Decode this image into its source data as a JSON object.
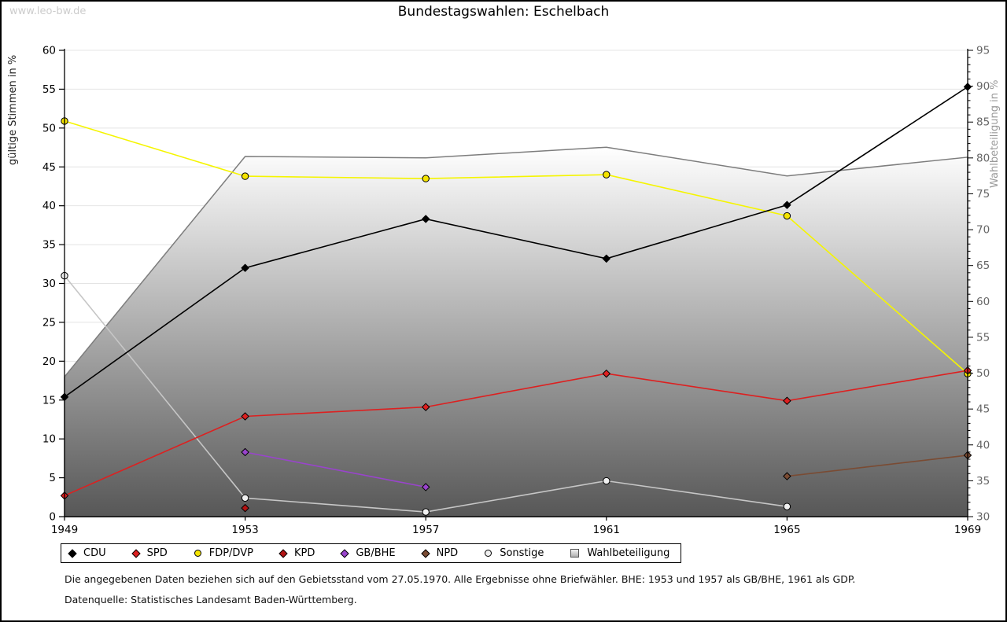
{
  "watermark": "www.leo-bw.de",
  "title": "Bundestagswahlen: Eschelbach",
  "footnotes": {
    "line1": "Die angegebenen Daten beziehen sich auf den Gebietsstand vom 27.05.1970. Alle Ergebnisse ohne Briefwähler. BHE: 1953 und 1957 als GB/BHE, 1961 als GDP.",
    "line2": "Datenquelle: Statistisches Landesamt Baden-Württemberg."
  },
  "chart_data": {
    "type": "line",
    "title": "Bundestagswahlen: Eschelbach",
    "x": [
      1949,
      1953,
      1957,
      1961,
      1965,
      1969
    ],
    "ylabel_left": "gültige Stimmen in %",
    "ylabel_right": "Wahlbeteiligung in %",
    "ylim_left": [
      0,
      60
    ],
    "ylim_right": [
      30,
      95
    ],
    "left_tick_step": 5,
    "right_tick_step": 5,
    "right_minor_tick_step": 1,
    "grid": true,
    "legend_position": "bottom",
    "series": [
      {
        "name": "Wahlbeteiligung",
        "kind": "area",
        "axis": "right",
        "color": "#7d7d7d",
        "fill_top": "#ffffff",
        "fill_bottom": "#575757",
        "marker": "square",
        "values": [
          49.5,
          80.2,
          80.0,
          81.5,
          77.5,
          80.1
        ]
      },
      {
        "name": "Sonstige",
        "kind": "line",
        "axis": "left",
        "color": "#c6c6c6",
        "marker": "circle",
        "marker_fill": "#f0f0f0",
        "values": [
          31.0,
          2.4,
          0.6,
          4.6,
          1.3,
          null
        ]
      },
      {
        "name": "GB/BHE",
        "kind": "line",
        "axis": "left",
        "color": "#9944cc",
        "marker": "diamond",
        "marker_fill": "#9944cc",
        "values": [
          null,
          8.3,
          3.8,
          null,
          null,
          null
        ]
      },
      {
        "name": "NPD",
        "kind": "line",
        "axis": "left",
        "color": "#7a4b33",
        "marker": "diamond",
        "marker_fill": "#7a4b33",
        "values": [
          null,
          null,
          null,
          null,
          5.2,
          7.9
        ]
      },
      {
        "name": "KPD",
        "kind": "line",
        "axis": "left",
        "color": "#b31414",
        "marker": "diamond",
        "marker_fill": "#b31414",
        "values": [
          null,
          1.1,
          null,
          null,
          null,
          null
        ]
      },
      {
        "name": "FDP/DVP",
        "kind": "line",
        "axis": "left",
        "color": "#f5f500",
        "marker": "circle",
        "marker_fill": "#f5e400",
        "values": [
          50.9,
          43.8,
          43.5,
          44.0,
          38.7,
          18.4
        ]
      },
      {
        "name": "SPD",
        "kind": "line",
        "axis": "left",
        "color": "#dd2020",
        "marker": "diamond",
        "marker_fill": "#dd2020",
        "values": [
          2.7,
          12.9,
          14.1,
          18.4,
          14.9,
          18.8
        ]
      },
      {
        "name": "CDU",
        "kind": "line",
        "axis": "left",
        "color": "#000000",
        "marker": "diamond",
        "marker_fill": "#000000",
        "values": [
          15.4,
          32.0,
          38.3,
          33.2,
          40.1,
          55.3
        ]
      }
    ],
    "legend_order": [
      "CDU",
      "SPD",
      "FDP/DVP",
      "KPD",
      "GB/BHE",
      "NPD",
      "Sonstige",
      "Wahlbeteiligung"
    ]
  }
}
